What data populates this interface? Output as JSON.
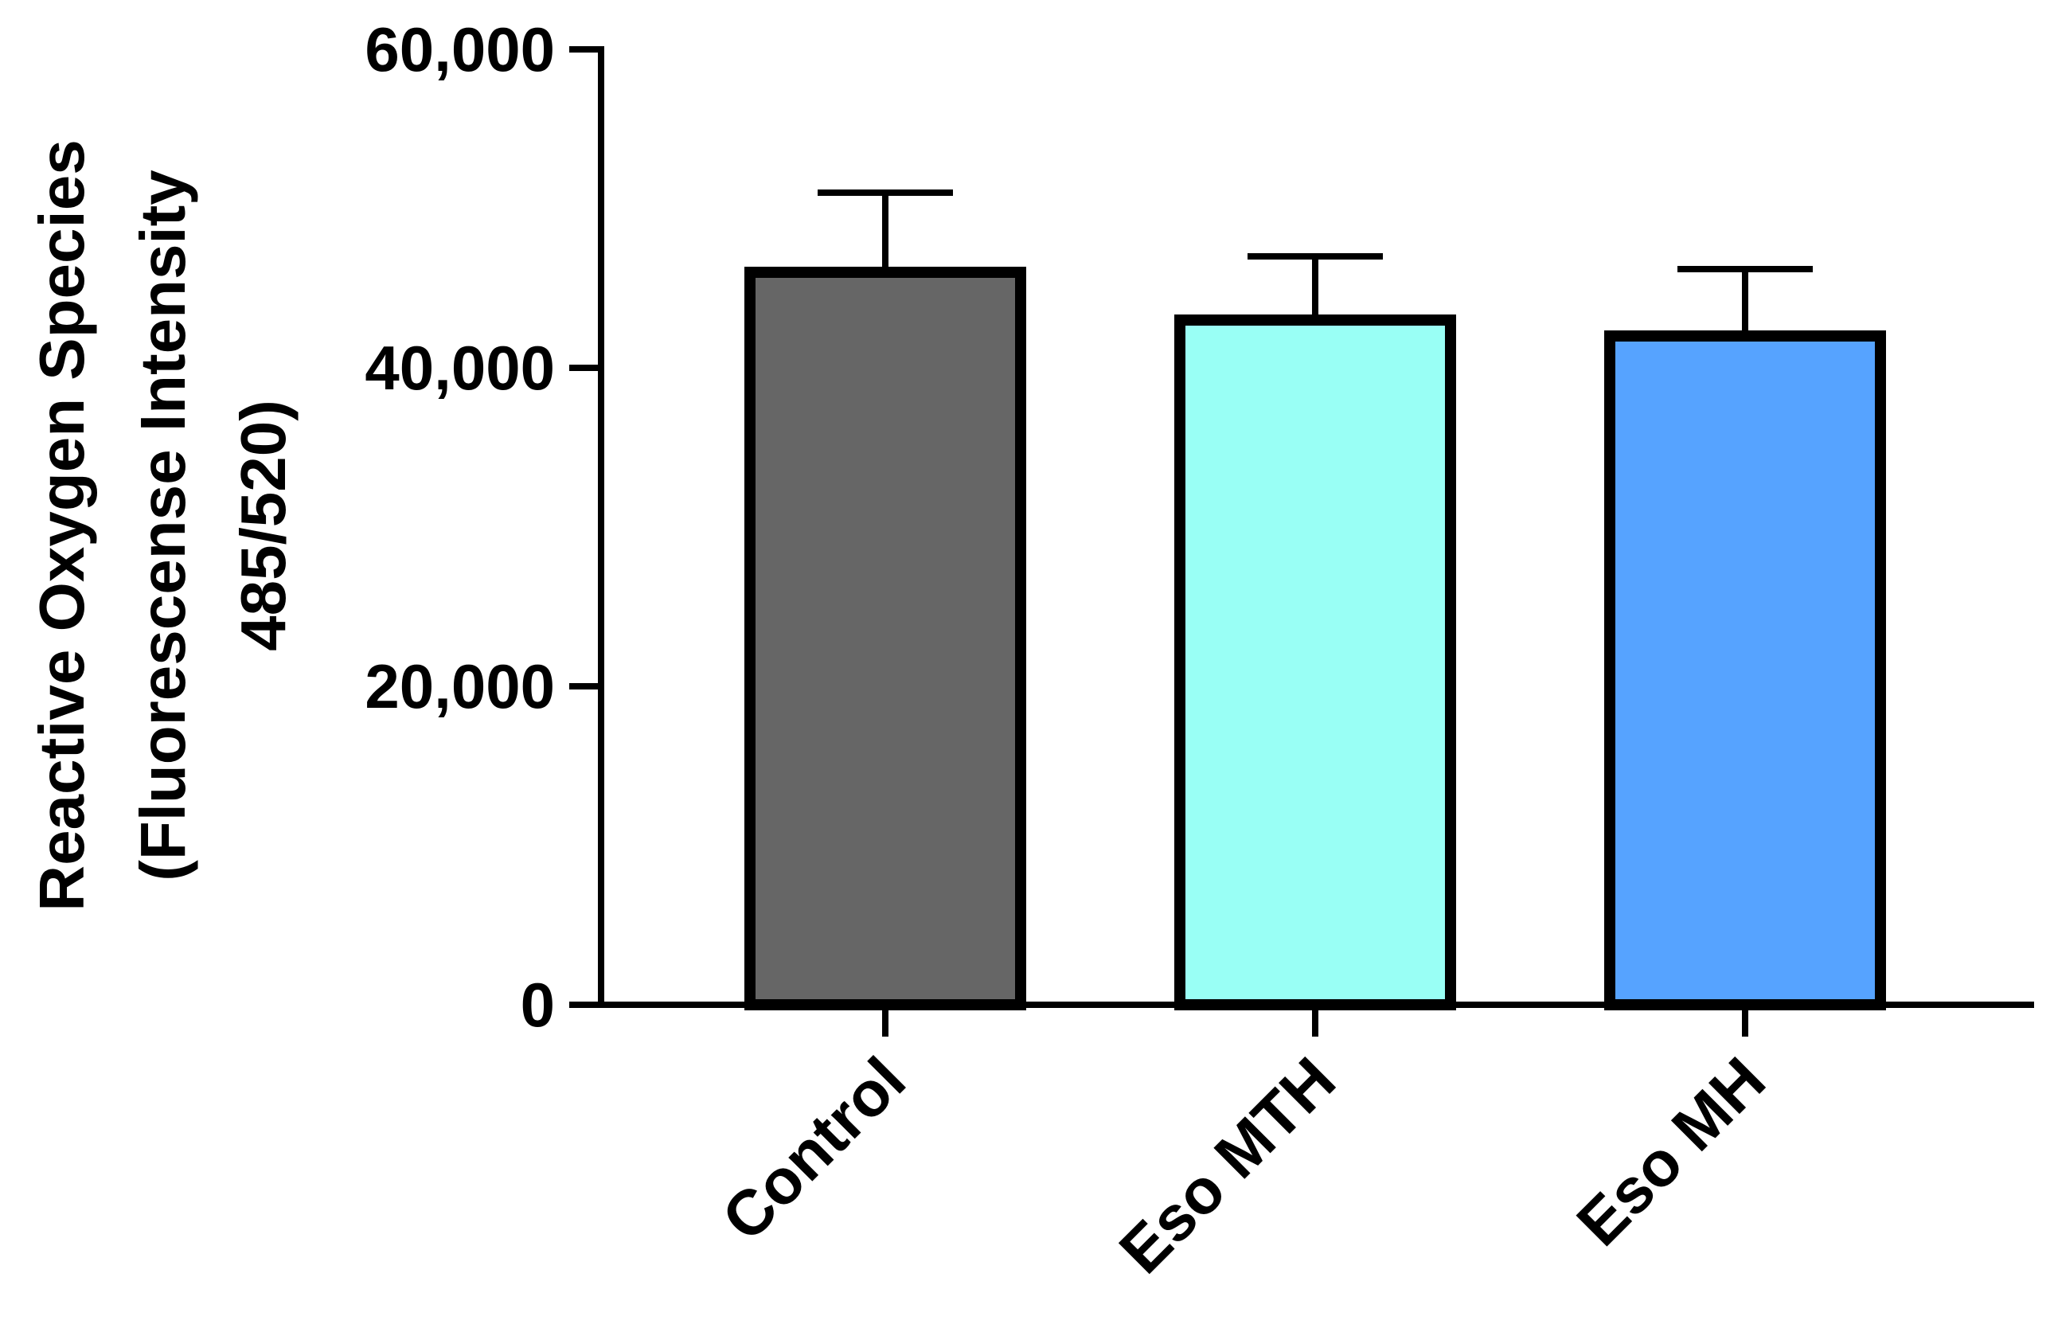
{
  "chart_data": {
    "type": "bar",
    "title": "",
    "xlabel": "",
    "ylabel_lines": [
      "Reactive Oxygen Species",
      "(Fluorescense Intensity",
      "485/520)"
    ],
    "categories": [
      "Control",
      "Eso MTH",
      "Eso MH"
    ],
    "series": [
      {
        "values": [
          46000,
          43000,
          42000
        ],
        "error_upper": [
          5000,
          4000,
          4200
        ],
        "colors": [
          "#666666",
          "#99FFF5",
          "#56A3FF"
        ]
      }
    ],
    "ylim": [
      0,
      60000
    ],
    "yticks": [
      0,
      20000,
      40000,
      60000
    ],
    "ytick_labels": [
      "0",
      "20,000",
      "40,000",
      "60,000"
    ],
    "grid": false,
    "legend": "none"
  }
}
